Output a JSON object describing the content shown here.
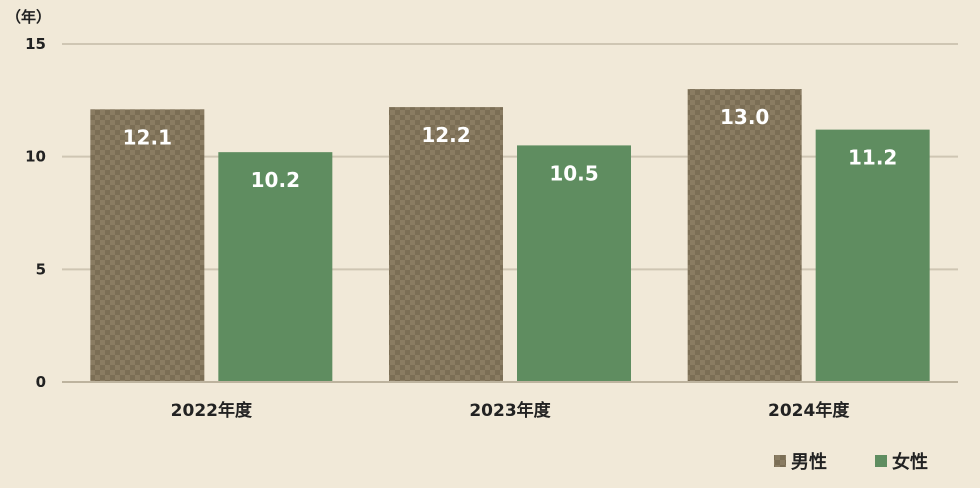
{
  "chart_data": {
    "type": "bar",
    "unit_label": "（年）",
    "categories": [
      "2022年度",
      "2023年度",
      "2024年度"
    ],
    "series": [
      {
        "name": "男性",
        "values": [
          12.1,
          12.2,
          13.0
        ],
        "color": "#7b6e55",
        "pattern": "checker"
      },
      {
        "name": "女性",
        "values": [
          10.2,
          10.5,
          11.2
        ],
        "color": "#5f8d60"
      }
    ],
    "ylim": [
      0,
      15
    ],
    "yticks": [
      0,
      5,
      10,
      15
    ],
    "grid": true,
    "legend_position": "bottom-right",
    "data_labels": true
  }
}
